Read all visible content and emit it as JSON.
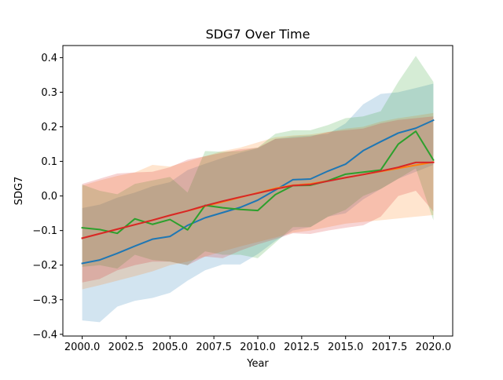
{
  "chart_data": {
    "type": "line",
    "title": "SDG7 Over Time",
    "xlabel": "Year",
    "ylabel": "SDG7",
    "xlim": [
      1998.9,
      2021.1
    ],
    "ylim": [
      -0.405,
      0.435
    ],
    "x_ticks": [
      2000.0,
      2002.5,
      2005.0,
      2007.5,
      2010.0,
      2012.5,
      2015.0,
      2017.5,
      2020.0
    ],
    "x_tick_labels": [
      "2000.0",
      "2002.5",
      "2005.0",
      "2007.5",
      "2010.0",
      "2012.5",
      "2015.0",
      "2017.5",
      "2020.0"
    ],
    "y_ticks": [
      -0.4,
      -0.3,
      -0.2,
      -0.1,
      0.0,
      0.1,
      0.2,
      0.3,
      0.4
    ],
    "y_tick_labels": [
      "−0.4",
      "−0.3",
      "−0.2",
      "−0.1",
      "0.0",
      "0.1",
      "0.2",
      "0.3",
      "0.4"
    ],
    "grid": false,
    "legend": false,
    "x": [
      2000,
      2001,
      2002,
      2003,
      2004,
      2005,
      2006,
      2007,
      2008,
      2009,
      2010,
      2011,
      2012,
      2013,
      2014,
      2015,
      2016,
      2017,
      2018,
      2019,
      2020
    ],
    "series": [
      {
        "color": "#1f77b4",
        "values": [
          -0.195,
          -0.185,
          -0.166,
          -0.145,
          -0.125,
          -0.117,
          -0.085,
          -0.063,
          -0.048,
          -0.033,
          -0.012,
          0.017,
          0.047,
          0.049,
          0.072,
          0.092,
          0.131,
          0.157,
          0.182,
          0.196,
          0.219
        ],
        "lower": [
          -0.36,
          -0.365,
          -0.32,
          -0.303,
          -0.295,
          -0.28,
          -0.245,
          -0.215,
          -0.198,
          -0.198,
          -0.168,
          -0.13,
          -0.1,
          -0.09,
          -0.06,
          -0.05,
          -0.01,
          0.02,
          0.05,
          0.07,
          0.09
        ],
        "upper": [
          -0.035,
          -0.025,
          -0.005,
          0.01,
          0.028,
          0.04,
          0.075,
          0.093,
          0.11,
          0.125,
          0.138,
          0.165,
          0.172,
          0.175,
          0.18,
          0.21,
          0.265,
          0.295,
          0.3,
          0.312,
          0.325
        ]
      },
      {
        "color": "#ff7f0e",
        "values": [
          -0.122,
          -0.109,
          -0.096,
          -0.083,
          -0.07,
          -0.056,
          -0.043,
          -0.03,
          -0.017,
          -0.004,
          0.009,
          0.022,
          0.031,
          0.035,
          0.044,
          0.053,
          0.062,
          0.071,
          0.08,
          0.089,
          0.098
        ],
        "lower": [
          -0.27,
          -0.258,
          -0.245,
          -0.232,
          -0.218,
          -0.2,
          -0.19,
          -0.175,
          -0.16,
          -0.146,
          -0.133,
          -0.12,
          -0.106,
          -0.1,
          -0.09,
          -0.08,
          -0.075,
          -0.07,
          -0.065,
          -0.06,
          -0.055
        ],
        "upper": [
          0.03,
          0.045,
          0.058,
          0.068,
          0.09,
          0.085,
          0.1,
          0.115,
          0.13,
          0.14,
          0.155,
          0.17,
          0.175,
          0.178,
          0.185,
          0.195,
          0.2,
          0.215,
          0.225,
          0.232,
          0.24
        ]
      },
      {
        "color": "#2ca02c",
        "values": [
          -0.092,
          -0.097,
          -0.108,
          -0.066,
          -0.082,
          -0.068,
          -0.098,
          -0.027,
          -0.034,
          -0.039,
          -0.042,
          0.004,
          0.03,
          0.031,
          0.044,
          0.063,
          0.069,
          0.075,
          0.15,
          0.187,
          0.104
        ],
        "lower": [
          -0.205,
          -0.2,
          -0.21,
          -0.17,
          -0.185,
          -0.19,
          -0.2,
          -0.16,
          -0.17,
          -0.17,
          -0.18,
          -0.135,
          -0.09,
          -0.09,
          -0.06,
          -0.04,
          0.0,
          0.02,
          0.05,
          0.08,
          -0.07
        ],
        "upper": [
          0.033,
          0.015,
          0.005,
          0.035,
          0.045,
          0.055,
          0.01,
          0.13,
          0.128,
          0.13,
          0.14,
          0.18,
          0.19,
          0.19,
          0.205,
          0.225,
          0.23,
          0.245,
          0.33,
          0.405,
          0.33
        ]
      },
      {
        "color": "#d62728",
        "values": [
          -0.122,
          -0.109,
          -0.096,
          -0.083,
          -0.07,
          -0.056,
          -0.043,
          -0.028,
          -0.015,
          -0.003,
          0.008,
          0.02,
          0.03,
          0.033,
          0.043,
          0.053,
          0.062,
          0.072,
          0.083,
          0.097,
          0.097
        ],
        "lower": [
          -0.25,
          -0.24,
          -0.215,
          -0.2,
          -0.19,
          -0.19,
          -0.2,
          -0.175,
          -0.18,
          -0.158,
          -0.14,
          -0.125,
          -0.108,
          -0.11,
          -0.1,
          -0.092,
          -0.085,
          -0.06,
          0.0,
          0.015,
          -0.045
        ],
        "upper": [
          0.035,
          0.05,
          0.065,
          0.068,
          0.07,
          0.083,
          0.105,
          0.115,
          0.125,
          0.135,
          0.14,
          0.165,
          0.168,
          0.172,
          0.185,
          0.19,
          0.195,
          0.21,
          0.22,
          0.225,
          0.23
        ]
      }
    ]
  }
}
